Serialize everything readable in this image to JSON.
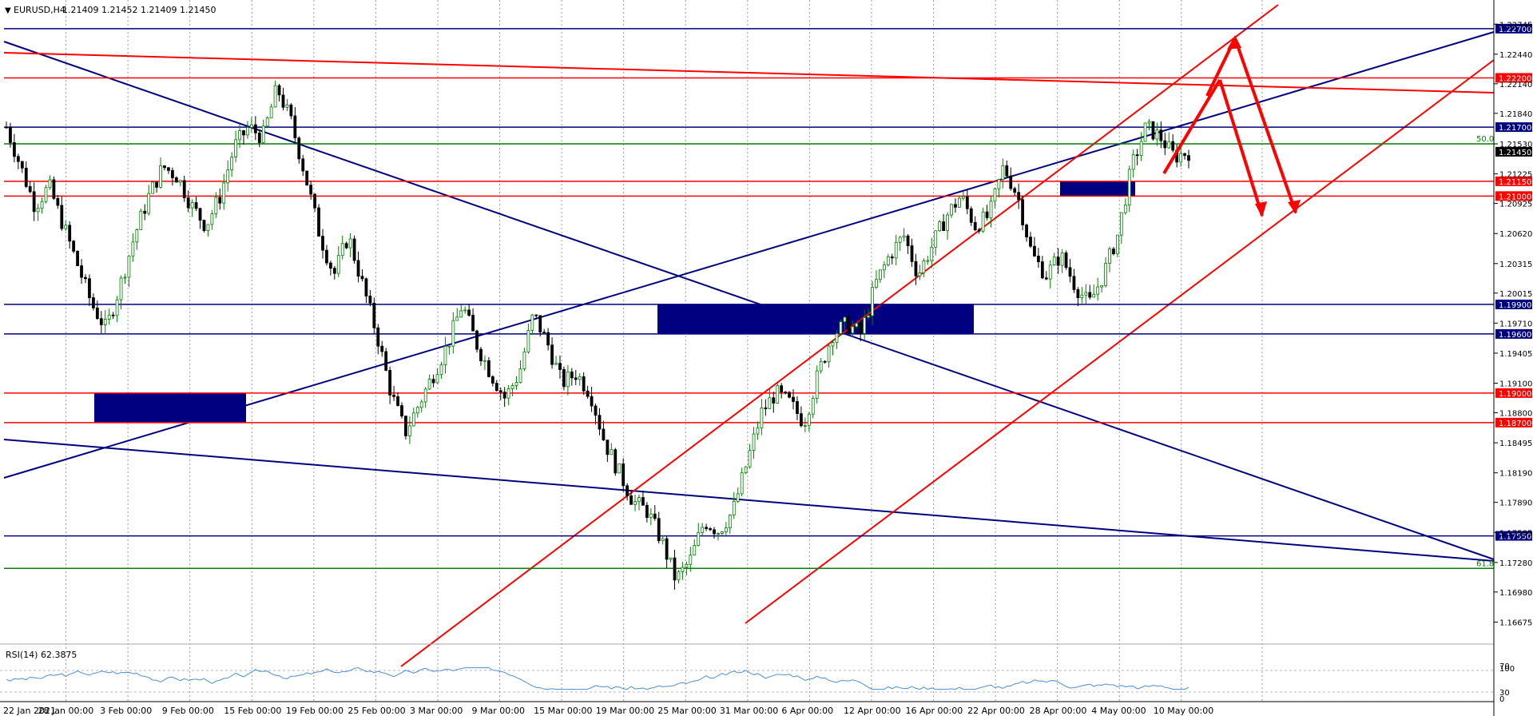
{
  "chart_data": {
    "type": "candlestick",
    "symbol_label": "EURUSD,H4",
    "ohlc_values": "1.21409 1.21452 1.21409 1.21450",
    "current_price": "1.21450",
    "y_range": [
      1.165,
      1.2295
    ],
    "y_ticks": [
      "1.22745",
      "1.22440",
      "1.22140",
      "1.21840",
      "1.21530",
      "1.21225",
      "1.20925",
      "1.20620",
      "1.20315",
      "1.20015",
      "1.19710",
      "1.19405",
      "1.19100",
      "1.18800",
      "1.18495",
      "1.18190",
      "1.17890",
      "1.17585",
      "1.17280",
      "1.16980",
      "1.16675"
    ],
    "x_ticks": [
      "22 Jan 2021",
      "28 Jan 00:00",
      "3 Feb 00:00",
      "9 Feb 00:00",
      "15 Feb 00:00",
      "19 Feb 00:00",
      "25 Feb 00:00",
      "3 Mar 00:00",
      "9 Mar 00:00",
      "15 Mar 00:00",
      "19 Mar 00:00",
      "25 Mar 00:00",
      "31 Mar 00:00",
      "6 Apr 00:00",
      "12 Apr 00:00",
      "16 Apr 00:00",
      "22 Apr 00:00",
      "28 Apr 00:00",
      "4 May 00:00",
      "10 May 00:00"
    ],
    "price_path": [
      [
        0,
        1.217
      ],
      [
        2,
        1.213
      ],
      [
        4,
        1.209
      ],
      [
        6,
        1.211
      ],
      [
        8,
        1.207
      ],
      [
        10,
        1.203
      ],
      [
        12,
        1.199
      ],
      [
        14,
        1.1965
      ],
      [
        16,
        1.201
      ],
      [
        18,
        1.206
      ],
      [
        20,
        1.21
      ],
      [
        22,
        1.213
      ],
      [
        24,
        1.212
      ],
      [
        26,
        1.209
      ],
      [
        28,
        1.207
      ],
      [
        30,
        1.21
      ],
      [
        32,
        1.215
      ],
      [
        34,
        1.217
      ],
      [
        36,
        1.216
      ],
      [
        38,
        1.221
      ],
      [
        40,
        1.2175
      ],
      [
        42,
        1.212
      ],
      [
        44,
        1.206
      ],
      [
        46,
        1.202
      ],
      [
        48,
        1.206
      ],
      [
        50,
        1.201
      ],
      [
        52,
        1.196
      ],
      [
        54,
        1.19
      ],
      [
        56,
        1.186
      ],
      [
        58,
        1.189
      ],
      [
        60,
        1.192
      ],
      [
        62,
        1.195
      ],
      [
        64,
        1.199
      ],
      [
        66,
        1.195
      ],
      [
        68,
        1.192
      ],
      [
        70,
        1.1895
      ],
      [
        72,
        1.192
      ],
      [
        74,
        1.198
      ],
      [
        76,
        1.195
      ],
      [
        78,
        1.191
      ],
      [
        80,
        1.192
      ],
      [
        82,
        1.19
      ],
      [
        84,
        1.185
      ],
      [
        86,
        1.182
      ],
      [
        88,
        1.179
      ],
      [
        90,
        1.178
      ],
      [
        92,
        1.175
      ],
      [
        94,
        1.171
      ],
      [
        96,
        1.173
      ],
      [
        98,
        1.177
      ],
      [
        100,
        1.176
      ],
      [
        102,
        1.178
      ],
      [
        104,
        1.183
      ],
      [
        106,
        1.188
      ],
      [
        108,
        1.19
      ],
      [
        110,
        1.189
      ],
      [
        112,
        1.187
      ],
      [
        114,
        1.192
      ],
      [
        116,
        1.196
      ],
      [
        118,
        1.197
      ],
      [
        120,
        1.196
      ],
      [
        122,
        1.201
      ],
      [
        124,
        1.204
      ],
      [
        126,
        1.206
      ],
      [
        128,
        1.202
      ],
      [
        130,
        1.205
      ],
      [
        132,
        1.208
      ],
      [
        134,
        1.21
      ],
      [
        136,
        1.207
      ],
      [
        138,
        1.208
      ],
      [
        140,
        1.213
      ],
      [
        142,
        1.21
      ],
      [
        144,
        1.204
      ],
      [
        146,
        1.202
      ],
      [
        148,
        1.204
      ],
      [
        150,
        1.201
      ],
      [
        152,
        1.199
      ],
      [
        154,
        1.202
      ],
      [
        156,
        1.206
      ],
      [
        158,
        1.213
      ],
      [
        160,
        1.217
      ],
      [
        162,
        1.216
      ],
      [
        164,
        1.214
      ],
      [
        166,
        1.2145
      ]
    ],
    "horizontal_levels": [
      {
        "price": "1.22700",
        "value": 1.227,
        "color": "#000080"
      },
      {
        "price": "1.22200",
        "value": 1.222,
        "color": "#ff0000"
      },
      {
        "price": "1.21700",
        "value": 1.217,
        "color": "#000080"
      },
      {
        "price": "1.21150",
        "value": 1.2115,
        "color": "#ff0000"
      },
      {
        "price": "1.21000",
        "value": 1.21,
        "color": "#ff0000"
      },
      {
        "price": "1.19900",
        "value": 1.199,
        "color": "#000080"
      },
      {
        "price": "1.19600",
        "value": 1.196,
        "color": "#000080"
      },
      {
        "price": "1.19000",
        "value": 1.19,
        "color": "#ff0000"
      },
      {
        "price": "1.18700",
        "value": 1.187,
        "color": "#ff0000"
      },
      {
        "price": "1.17550",
        "value": 1.1755,
        "color": "#000080"
      }
    ],
    "fibo_levels": [
      {
        "label": "50.0",
        "value": 1.2153,
        "color": "#008000"
      },
      {
        "label": "61.8",
        "value": 1.1722,
        "color": "#008000"
      }
    ],
    "rsi": {
      "label": "RSI(14) 62.3875",
      "ticks": [
        "100",
        "70",
        "30",
        "0"
      ]
    }
  },
  "colors": {
    "bull": "#008000",
    "bear": "#000000",
    "support": "#000080",
    "resistance": "#ff0000",
    "fibo": "#008000",
    "grid": "#9a9a9a",
    "zone": "#000080"
  }
}
